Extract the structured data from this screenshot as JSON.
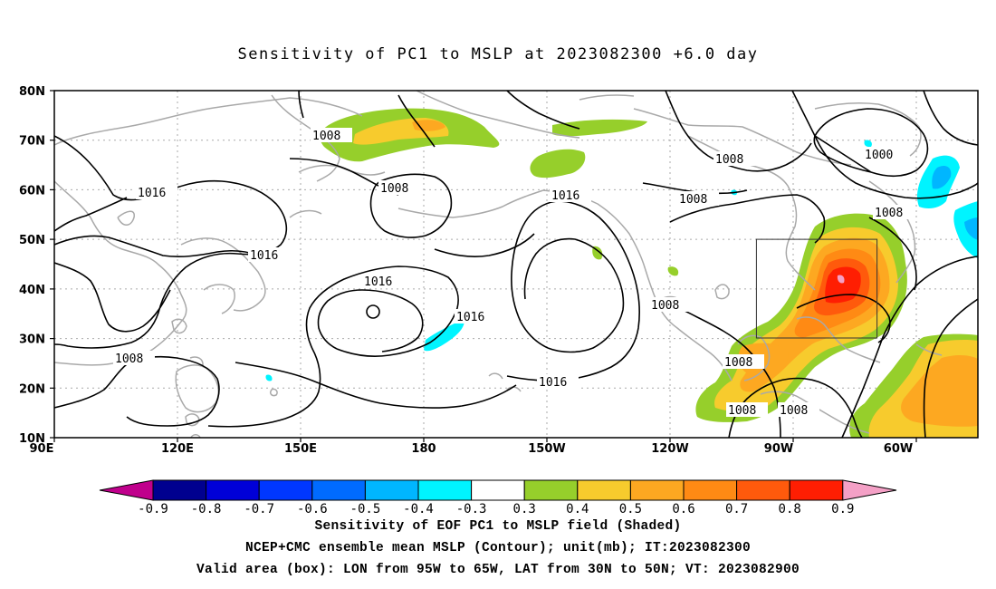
{
  "title": "Sensitivity of PC1 to MSLP at 2023082300 +6.0 day",
  "axes": {
    "lat_labels": [
      "80N",
      "70N",
      "60N",
      "50N",
      "40N",
      "30N",
      "20N",
      "10N"
    ],
    "lon_labels": [
      "90E",
      "120E",
      "150E",
      "180",
      "150W",
      "120W",
      "90W",
      "60W"
    ]
  },
  "contour_labels": [
    "1008",
    "1016",
    "1008",
    "1016",
    "1016",
    "1016",
    "1008",
    "1016",
    "1008",
    "1008",
    "1000",
    "1008",
    "1008",
    "1008",
    "1008",
    "1008"
  ],
  "colorbar": {
    "labels": [
      "-0.9",
      "-0.8",
      "-0.7",
      "-0.6",
      "-0.5",
      "-0.4",
      "-0.3",
      "0.3",
      "0.4",
      "0.5",
      "0.6",
      "0.7",
      "0.8",
      "0.9"
    ],
    "colors": {
      "below": "#c0008c",
      "n09": "#00008f",
      "n08": "#0000d8",
      "n07": "#0037ff",
      "n06": "#006bff",
      "n05": "#00b6ff",
      "n04": "#00f4ff",
      "neutral": "#ffffff",
      "p03": "#96cf2b",
      "p04": "#f7cb2d",
      "p05": "#fda821",
      "p06": "#ff8a14",
      "p07": "#ff5a0c",
      "p08": "#ff1e02",
      "above": "#f4a0c6"
    }
  },
  "captions": {
    "line1": "Sensitivity of EOF PC1 to MSLP field (Shaded)",
    "line2": "NCEP+CMC ensemble mean MSLP (Contour); unit(mb); IT:2023082300",
    "line3": "Valid area (box): LON from 95W to 65W, LAT from 30N to 50N; VT: 2023082900"
  }
}
